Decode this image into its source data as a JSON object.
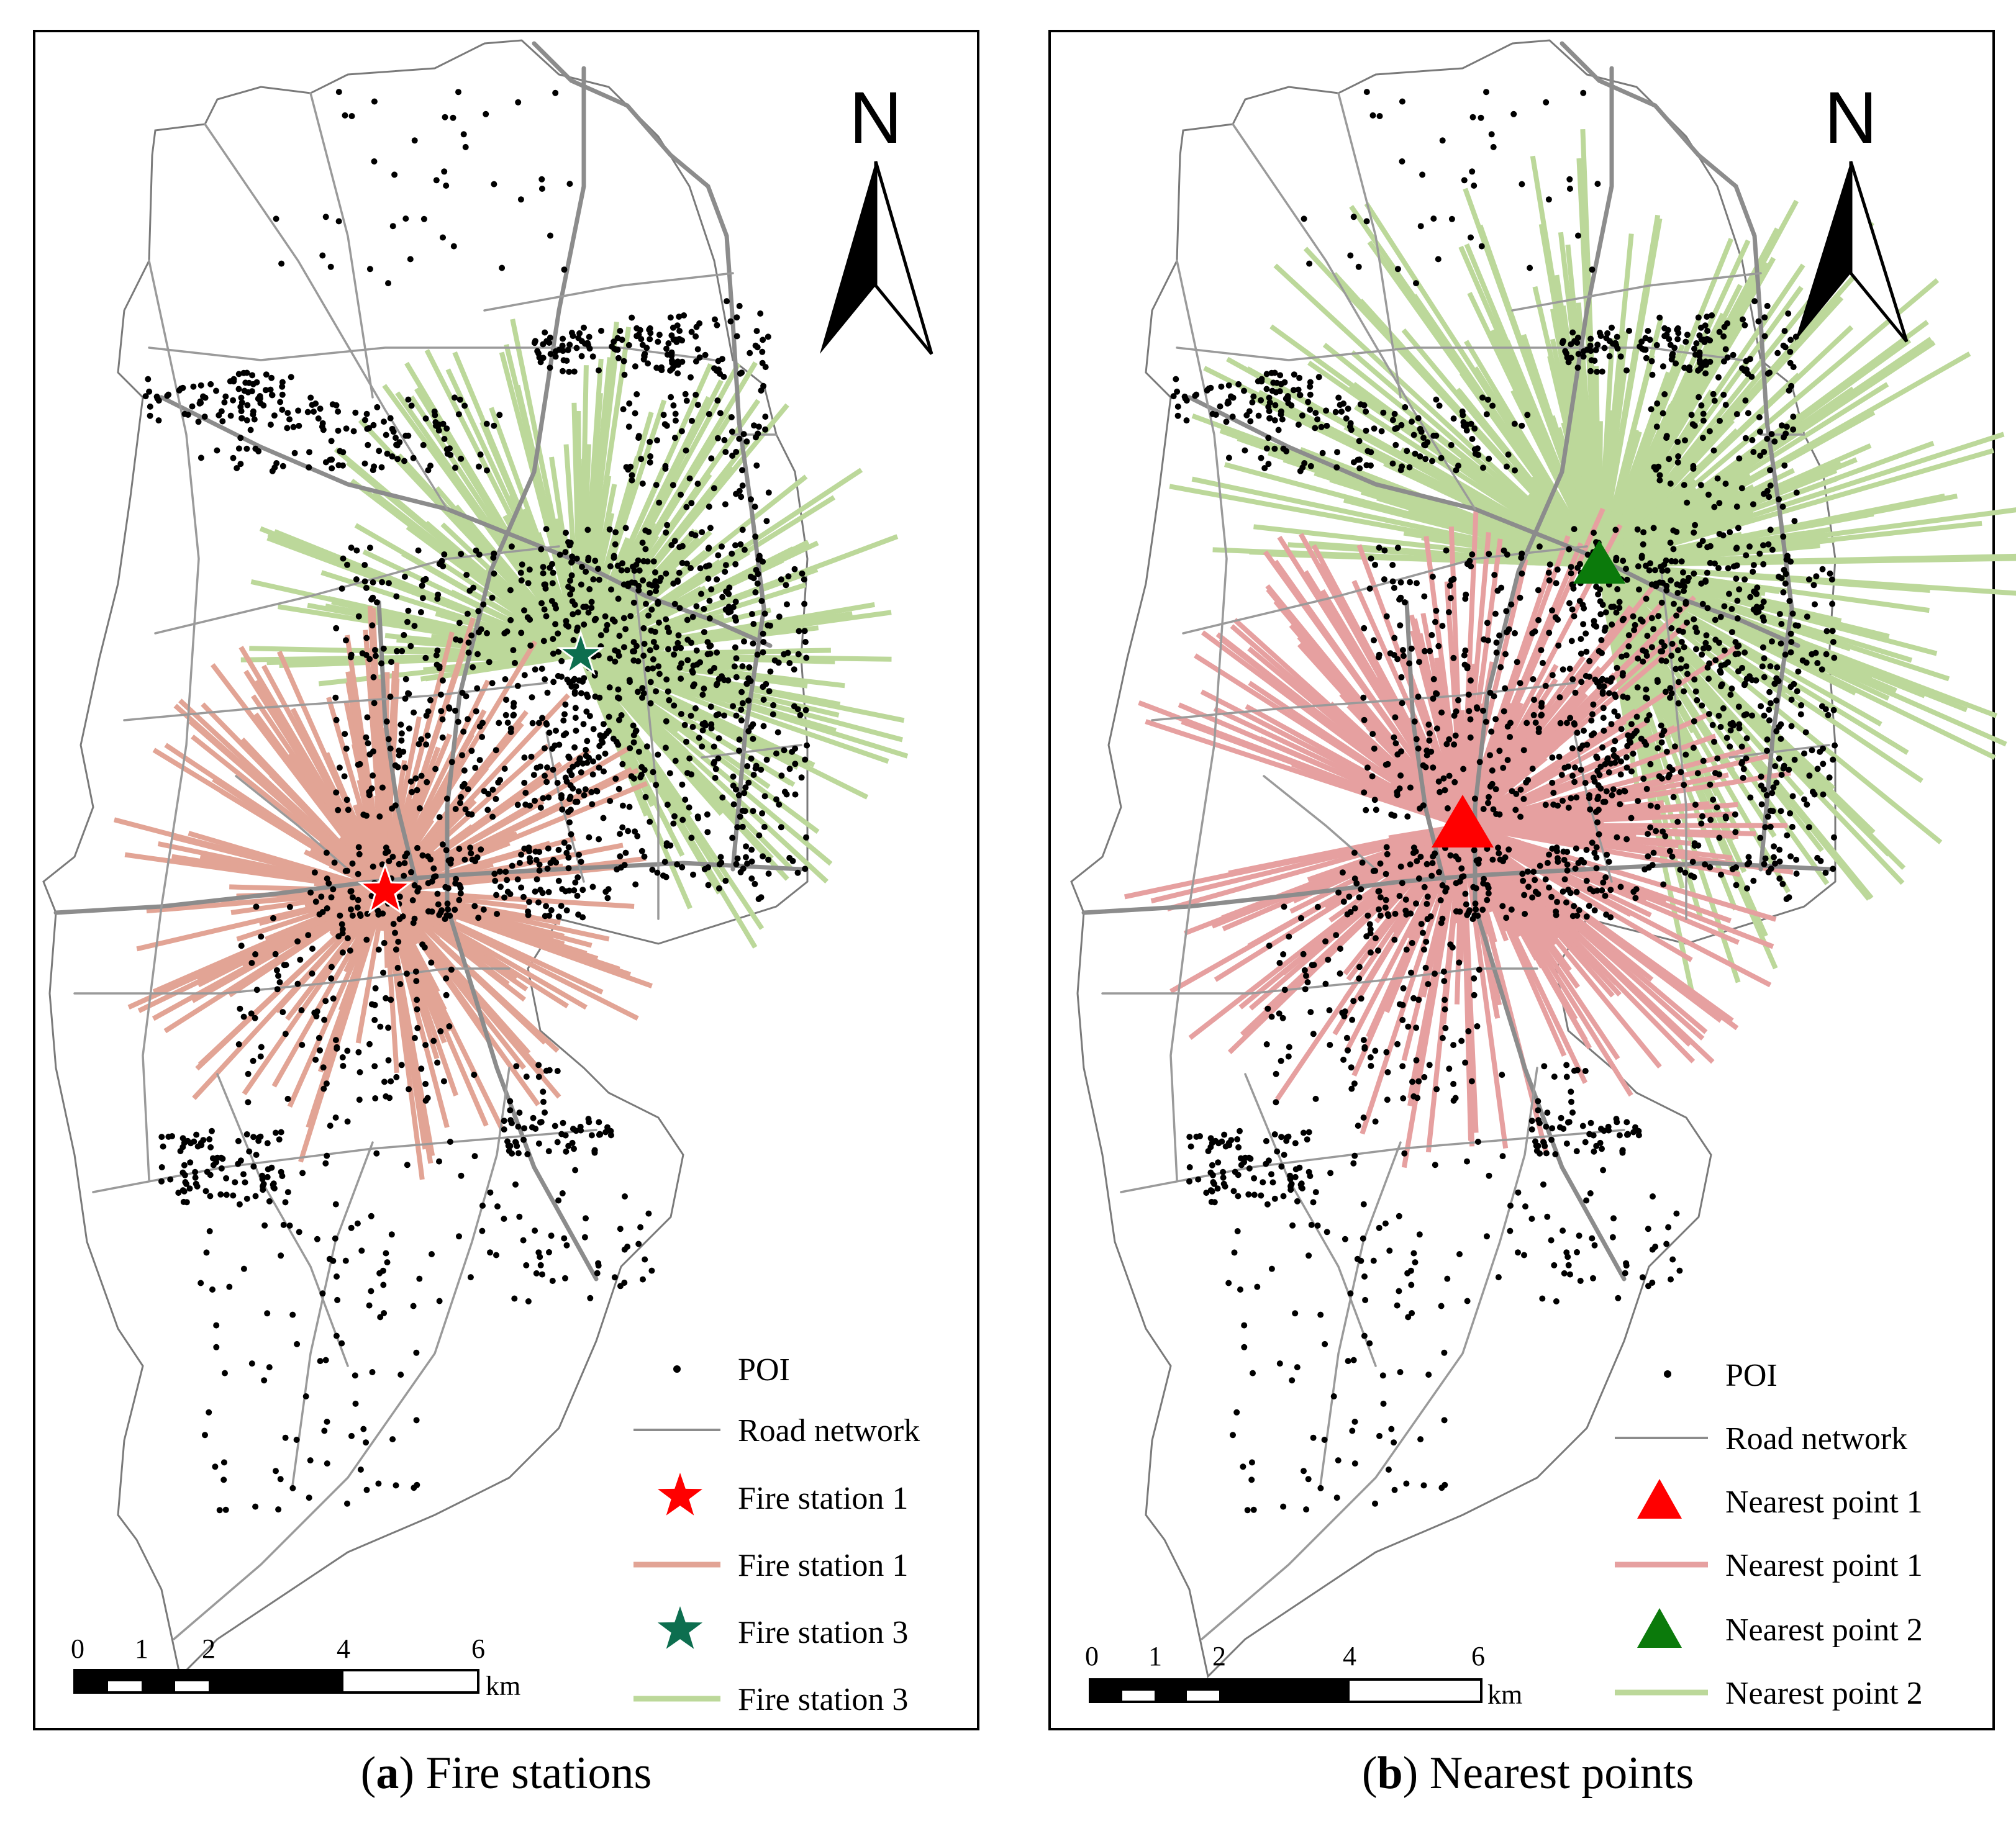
{
  "panels": [
    {
      "id": "a",
      "north_label": "N",
      "legend": [
        {
          "label": "POI",
          "symbol": "dot",
          "color": "#000000"
        },
        {
          "label": "Road network",
          "symbol": "line",
          "color": "#8c8c8c"
        },
        {
          "label": "Fire station 1",
          "symbol": "star",
          "color": "#ff0000"
        },
        {
          "label": "Fire station 1",
          "symbol": "line",
          "color": "#e2a495"
        },
        {
          "label": "Fire station 3",
          "symbol": "star",
          "color": "#0d6e4f"
        },
        {
          "label": "Fire station 3",
          "symbol": "line",
          "color": "#bcd89a"
        }
      ],
      "scale": {
        "ticks": [
          "0",
          "1",
          "2",
          "4",
          "6"
        ],
        "unit": "km"
      },
      "caption": {
        "letter": "a",
        "text": "Fire stations"
      }
    },
    {
      "id": "b",
      "north_label": "N",
      "legend": [
        {
          "label": "POI",
          "symbol": "dot",
          "color": "#000000"
        },
        {
          "label": "Road network",
          "symbol": "line",
          "color": "#8c8c8c"
        },
        {
          "label": "Nearest point 1",
          "symbol": "triangle",
          "color": "#ff0000"
        },
        {
          "label": "Nearest point 1",
          "symbol": "line",
          "color": "#e6a0a0"
        },
        {
          "label": "Nearest point 2",
          "symbol": "triangle",
          "color": "#0b7a0b"
        },
        {
          "label": "Nearest point 2",
          "symbol": "line",
          "color": "#bcd89a"
        }
      ],
      "scale": {
        "ticks": [
          "0",
          "1",
          "2",
          "4",
          "6"
        ],
        "unit": "km"
      },
      "caption": {
        "letter": "b",
        "text": "Nearest points"
      }
    }
  ]
}
